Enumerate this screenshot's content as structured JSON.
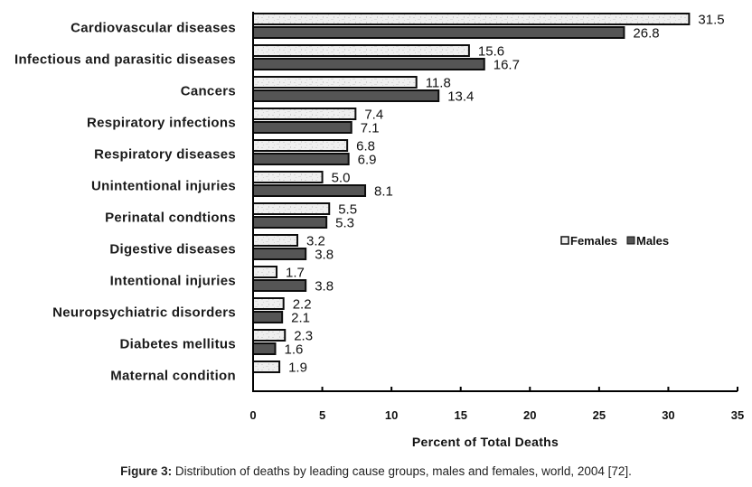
{
  "chart_data": {
    "type": "bar",
    "orientation": "horizontal",
    "title": "",
    "xlabel": "Percent of Total Deaths",
    "ylabel": "",
    "xlim": [
      0,
      35
    ],
    "xticks": [
      0,
      5,
      10,
      15,
      20,
      25,
      30,
      35
    ],
    "grid": false,
    "legend_position": "right-middle",
    "categories": [
      "Cardiovascular diseases",
      "Infectious and parasitic diseases",
      "Cancers",
      "Respiratory infections",
      "Respiratory diseases",
      "Unintentional injuries",
      "Perinatal condtions",
      "Digestive diseases",
      "Intentional injuries",
      "Neuropsychiatric disorders",
      "Diabetes mellitus",
      "Maternal condition"
    ],
    "series": [
      {
        "name": "Females",
        "color": "#eeeeee",
        "values": [
          31.5,
          15.6,
          11.8,
          7.4,
          6.8,
          5.0,
          5.5,
          3.2,
          1.7,
          2.2,
          2.3,
          1.9
        ]
      },
      {
        "name": "Males",
        "color": "#555555",
        "values": [
          26.8,
          16.7,
          13.4,
          7.1,
          6.9,
          8.1,
          5.3,
          3.8,
          3.8,
          2.1,
          1.6,
          null
        ]
      }
    ]
  },
  "caption": {
    "label": "Figure 3:",
    "text": " Distribution of deaths by leading cause groups, males and females, world, 2004 [72]."
  }
}
